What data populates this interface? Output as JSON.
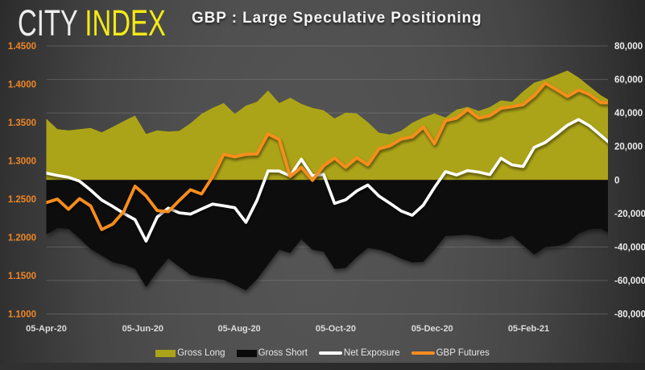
{
  "logo": {
    "part1": "CITY",
    "part2": "INDEX"
  },
  "title": "GBP : Large Speculative Positioning",
  "colors": {
    "gross_long": "#aca418",
    "gross_short": "#0a0a0a",
    "net_exposure": "#ffffff",
    "gbp_futures": "#f78d1e",
    "left_axis_text": "#ef8625",
    "right_axis_text": "#ececec",
    "gridline": "#8a8a8a",
    "logo_index_yellow": "#f4ea15",
    "background_center": "#565656",
    "background_edge": "#272727"
  },
  "legend": {
    "items": [
      {
        "label": "Gross Long",
        "marker": "rect",
        "color": "#aca418"
      },
      {
        "label": "Gross Short",
        "marker": "rect",
        "color": "#0a0a0a"
      },
      {
        "label": "Net Exposure",
        "marker": "line",
        "color": "#ffffff"
      },
      {
        "label": "GBP Futures",
        "marker": "line",
        "color": "#f78d1e"
      }
    ]
  },
  "chart_data": {
    "type": "area-line-combo",
    "title": "GBP : Large Speculative Positioning",
    "x_unit": "weekly",
    "x_tick_labels": [
      "05-Apr-20",
      "05-Jun-20",
      "05-Aug-20",
      "05-Oct-20",
      "05-Dec-20",
      "05-Feb-21"
    ],
    "left_axis": {
      "tick_labels": [
        "1.4500",
        "1.4000",
        "1.3500",
        "1.3000",
        "1.2500",
        "1.2000",
        "1.1500",
        "1.1000"
      ],
      "min": 1.1,
      "max": 1.45
    },
    "right_axis": {
      "tick_labels": [
        "80,000",
        "60,000",
        "40,000",
        "20,000",
        "0",
        "-20,000",
        "-40,000",
        "-60,000",
        "-80,000"
      ],
      "min": -80000,
      "max": 80000
    },
    "grid": "horizontal-right-axis",
    "legend_position": "bottom",
    "series": [
      {
        "name": "Gross Long",
        "type": "area",
        "axis": "right",
        "color": "#aca418",
        "values": [
          36600,
          30300,
          29600,
          30300,
          31000,
          28400,
          31700,
          35200,
          38400,
          27400,
          29600,
          28900,
          29300,
          33800,
          39500,
          43000,
          45900,
          39500,
          44400,
          46600,
          53400,
          45900,
          49100,
          45400,
          43000,
          41600,
          36700,
          40200,
          39700,
          34500,
          28200,
          27100,
          29400,
          34100,
          37300,
          39700,
          37300,
          42000,
          43600,
          41200,
          43500,
          47500,
          46700,
          52800,
          58100,
          60100,
          62700,
          65300,
          61200,
          55900,
          50600,
          46700
        ]
      },
      {
        "name": "Gross Short",
        "type": "area",
        "axis": "right",
        "color": "#0a0a0a",
        "values": [
          -32500,
          -28600,
          -29100,
          -34900,
          -41200,
          -45100,
          -49100,
          -50600,
          -53000,
          -64000,
          -54700,
          -46800,
          -51800,
          -56600,
          -58000,
          -58600,
          -59600,
          -62700,
          -65900,
          -59300,
          -50400,
          -41600,
          -43600,
          -35400,
          -41600,
          -42900,
          -53100,
          -52500,
          -46000,
          -40700,
          -41600,
          -43700,
          -47000,
          -49200,
          -48800,
          -41600,
          -33400,
          -33100,
          -32700,
          -33600,
          -35300,
          -35500,
          -33200,
          -38900,
          -44500,
          -40100,
          -39500,
          -37600,
          -31900,
          -29400,
          -29000,
          -32500
        ]
      },
      {
        "name": "Net Exposure",
        "type": "line",
        "axis": "right",
        "color": "#ffffff",
        "values": [
          4100,
          2700,
          1600,
          -700,
          -6100,
          -12000,
          -15800,
          -20000,
          -23700,
          -36500,
          -22100,
          -16800,
          -19600,
          -20400,
          -17300,
          -14400,
          -15400,
          -16600,
          -25300,
          -12200,
          5400,
          5300,
          2500,
          12400,
          2500,
          3400,
          -14000,
          -11800,
          -6500,
          -3000,
          -9600,
          -14000,
          -18500,
          -21100,
          -15000,
          -4500,
          5000,
          3000,
          5600,
          4700,
          3200,
          13000,
          9000,
          8000,
          19400,
          22400,
          27400,
          32700,
          36100,
          32300,
          26700,
          20900
        ]
      },
      {
        "name": "GBP Futures",
        "type": "line",
        "axis": "left",
        "color": "#f78d1e",
        "values": [
          1.2455,
          1.25,
          1.2367,
          1.2506,
          1.241,
          1.2103,
          1.2175,
          1.2342,
          1.2668,
          1.2541,
          1.2351,
          1.2336,
          1.2483,
          1.2622,
          1.2567,
          1.2794,
          1.3085,
          1.3053,
          1.3085,
          1.309,
          1.3353,
          1.3278,
          1.2795,
          1.2916,
          1.2745,
          1.2935,
          1.3036,
          1.2915,
          1.304,
          1.2947,
          1.3158,
          1.3197,
          1.3284,
          1.3313,
          1.3441,
          1.3224,
          1.3524,
          1.3558,
          1.367,
          1.3559,
          1.3588,
          1.3686,
          1.3707,
          1.3735,
          1.385,
          1.4016,
          1.3932,
          1.3841,
          1.3925,
          1.3867,
          1.376,
          1.376
        ]
      }
    ]
  }
}
